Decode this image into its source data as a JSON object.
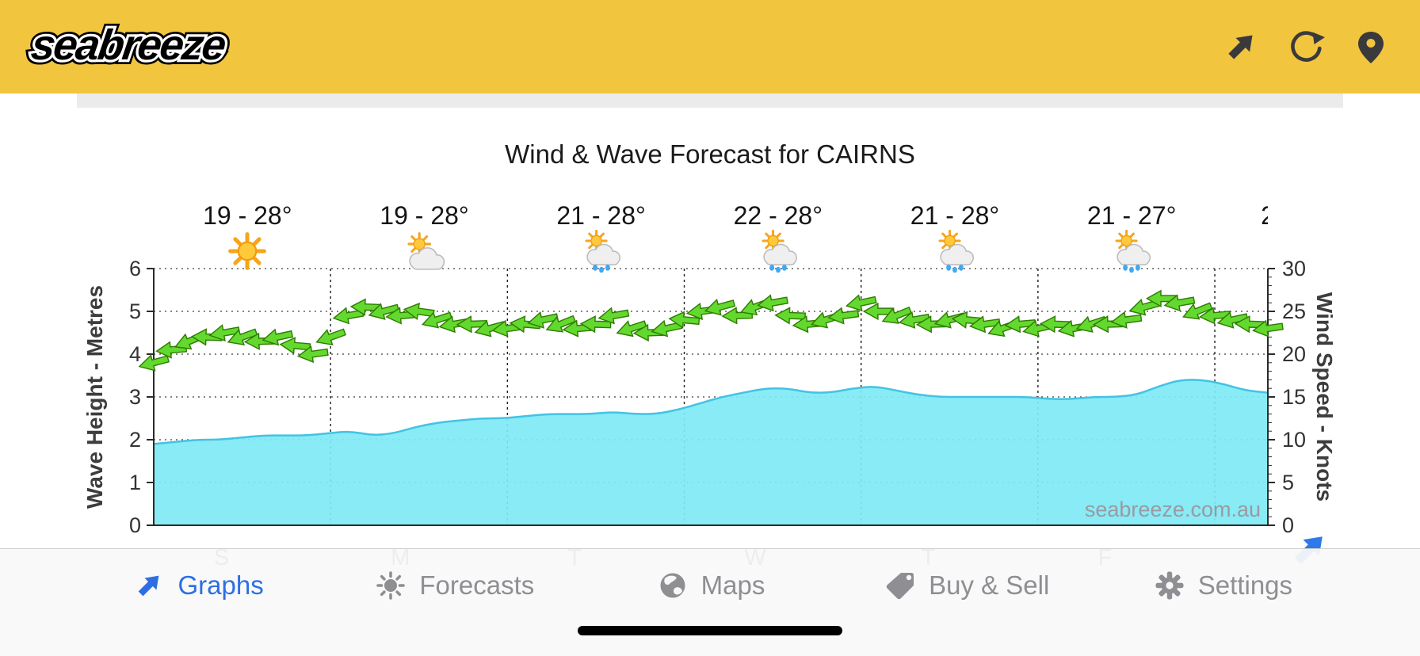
{
  "header": {
    "logo": "seabreeze",
    "icons": [
      "share-arrow-icon",
      "refresh-icon",
      "location-pin-icon"
    ]
  },
  "chart": {
    "title": "Wind & Wave Forecast for CAIRNS",
    "watermark": "seabreeze.com.au"
  },
  "chart_data": {
    "type": "line",
    "title": "Wind & Wave Forecast for CAIRNS",
    "left_axis": {
      "label": "Wave Height - Metres",
      "min": 0,
      "max": 6,
      "ticks": [
        0,
        1,
        2,
        3,
        4,
        5,
        6
      ]
    },
    "right_axis": {
      "label": "Wind Speed - Knots",
      "min": 0,
      "max": 30,
      "ticks": [
        0,
        5,
        10,
        15,
        20,
        25,
        30
      ]
    },
    "grid": "dotted",
    "days": [
      {
        "temp_range": "19 - 28°",
        "icon": "sunny",
        "day_letter": "S"
      },
      {
        "temp_range": "19 - 28°",
        "icon": "partly-cloudy",
        "day_letter": "M"
      },
      {
        "temp_range": "21 - 28°",
        "icon": "sun-showers",
        "day_letter": "T"
      },
      {
        "temp_range": "22 - 28°",
        "icon": "sun-showers",
        "day_letter": "W"
      },
      {
        "temp_range": "21 - 28°",
        "icon": "sun-showers",
        "day_letter": "T"
      },
      {
        "temp_range": "21 - 27°",
        "icon": "sun-showers",
        "day_letter": "F"
      },
      {
        "temp_range": "2",
        "icon": null,
        "day_letter": null
      }
    ],
    "series": [
      {
        "name": "Wave Height",
        "axis": "left",
        "type": "area",
        "color": "#7EE9F5",
        "values": [
          1.9,
          1.95,
          2.0,
          2.0,
          2.05,
          2.1,
          2.1,
          2.1,
          2.15,
          2.2,
          2.1,
          2.15,
          2.3,
          2.4,
          2.45,
          2.5,
          2.5,
          2.55,
          2.6,
          2.6,
          2.6,
          2.65,
          2.6,
          2.6,
          2.7,
          2.85,
          3.0,
          3.1,
          3.2,
          3.2,
          3.1,
          3.1,
          3.2,
          3.25,
          3.15,
          3.05,
          3.0,
          3.0,
          3.0,
          3.0,
          3.0,
          2.95,
          2.95,
          3.0,
          3.0,
          3.05,
          3.25,
          3.4,
          3.4,
          3.3,
          3.15,
          3.1
        ]
      },
      {
        "name": "Wind Speed",
        "axis": "right",
        "type": "wind-arrows",
        "color": "#63D92F",
        "values": [
          19,
          20.5,
          21.5,
          22,
          22.5,
          22,
          21.5,
          22,
          21,
          20,
          22,
          24.5,
          25.5,
          25,
          24.5,
          25,
          24,
          23.5,
          23.5,
          23,
          23,
          23.5,
          24,
          23.5,
          23,
          23.5,
          24.5,
          23,
          22.5,
          23,
          24,
          25,
          25.5,
          24.5,
          25.5,
          26,
          24.5,
          23.5,
          24,
          24.5,
          26,
          25,
          24.5,
          24,
          23.5,
          24,
          24,
          23.5,
          23,
          23.5,
          23,
          23.5,
          23,
          23.5,
          23.5,
          24,
          25.5,
          26.5,
          26,
          25,
          24.5,
          24,
          23.5,
          23
        ],
        "directions_deg": [
          165,
          175,
          158,
          182,
          170,
          160,
          178,
          168,
          185,
          172,
          160,
          170,
          182,
          165,
          175,
          188,
          162,
          170,
          178,
          165,
          172,
          185,
          168,
          158,
          175,
          182,
          170,
          162,
          178,
          168,
          185,
          172,
          165,
          178,
          160,
          170,
          182,
          175,
          162,
          172,
          168,
          180,
          158,
          170,
          178,
          165,
          185,
          172,
          160,
          175,
          168,
          182,
          170,
          162,
          178,
          172,
          165,
          180,
          170,
          158,
          175,
          168,
          182,
          172
        ]
      }
    ]
  },
  "tabbar": {
    "items": [
      {
        "label": "Graphs",
        "icon": "graphs-arrow-icon",
        "active": true
      },
      {
        "label": "Forecasts",
        "icon": "sun-icon",
        "active": false
      },
      {
        "label": "Maps",
        "icon": "globe-icon",
        "active": false
      },
      {
        "label": "Buy & Sell",
        "icon": "tag-icon",
        "active": false
      },
      {
        "label": "Settings",
        "icon": "gear-icon",
        "active": false
      }
    ]
  }
}
